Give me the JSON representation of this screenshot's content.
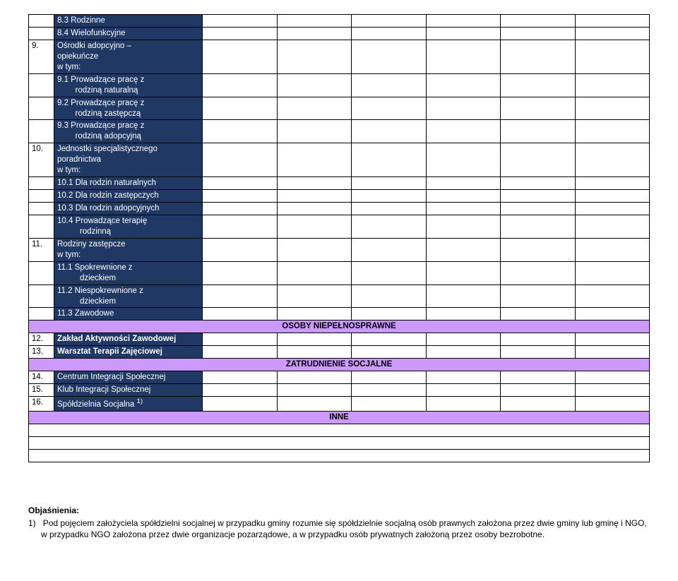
{
  "columns": {
    "num_width": 36,
    "desc_width": 210,
    "data_cols": 6
  },
  "colors": {
    "navy_bg": "#1f3864",
    "navy_text": "#ffffff",
    "purple_bg": "#cc99ff",
    "border": "#000000",
    "page_bg": "#ffffff"
  },
  "rows": [
    {
      "num": "",
      "desc": "8.3 Rodzinne",
      "navy": true,
      "indent": 1
    },
    {
      "num": "",
      "desc": "8.4 Wielofunkcyjne",
      "navy": true,
      "indent": 1
    },
    {
      "num": "9.",
      "desc": "Ośrodki adopcyjno –\nopiekuńcze\nw tym:",
      "navy": true,
      "indent": 0
    },
    {
      "num": "",
      "desc": "9.1 Prowadzące pracę z\n        rodziną naturalną",
      "navy": true,
      "indent": 1
    },
    {
      "num": "",
      "desc": "9.2 Prowadzące pracę z\n        rodziną zastępczą",
      "navy": true,
      "indent": 1
    },
    {
      "num": "",
      "desc": "9.3 Prowadzące pracę z\n        rodziną adopcyjną",
      "navy": true,
      "indent": 1
    },
    {
      "num": "10.",
      "desc": "Jednostki specjalistycznego\nporadnictwa\nw tym:",
      "navy": true,
      "indent": 0
    },
    {
      "num": "",
      "desc": "10.1 Dla rodzin naturalnych",
      "navy": true,
      "indent": 1
    },
    {
      "num": "",
      "desc": "10.2 Dla rodzin zastępczych",
      "navy": true,
      "indent": 1
    },
    {
      "num": "",
      "desc": "10.3 Dla rodzin adopcyjnych",
      "navy": true,
      "indent": 1
    },
    {
      "num": "",
      "desc": "10.4 Prowadzące terapię\n          rodzinną",
      "navy": true,
      "indent": 1
    },
    {
      "num": "11.",
      "desc": "Rodziny zastępcze\nw tym:",
      "navy": true,
      "indent": 0
    },
    {
      "num": "",
      "desc": "11.1 Spokrewnione z\n          dzieckiem",
      "navy": true,
      "indent": 1
    },
    {
      "num": "",
      "desc": "11.2 Niespokrewnione z\n          dzieckiem",
      "navy": true,
      "indent": 1
    },
    {
      "num": "",
      "desc": "11.3 Zawodowe",
      "navy": true,
      "indent": 1
    }
  ],
  "section1": {
    "label": "OSOBY NIEPEŁNOSPRAWNE"
  },
  "rows2": [
    {
      "num": "12.",
      "desc": "Zakład Aktywności Zawodowej",
      "navy": true,
      "bold": true
    },
    {
      "num": "13.",
      "desc": "Warsztat Terapii Zajęciowej",
      "navy": true,
      "bold": true
    }
  ],
  "section2": {
    "label": "ZATRUDNIENIE SOCJALNE"
  },
  "rows3": [
    {
      "num": "14.",
      "desc": "Centrum Integracji Społecznej",
      "navy": true
    },
    {
      "num": "15.",
      "desc": "Klub Integracji Społecznej",
      "navy": true
    },
    {
      "num": "16.",
      "desc": "Spółdzielnia Socjalna ",
      "sup": "1)",
      "navy": true
    }
  ],
  "section3": {
    "label": "INNE"
  },
  "empty_rows_after_inne": 3,
  "notes": {
    "heading": "Objaśnienia:",
    "item_num": "1)",
    "item_text": "Pod pojęciem założyciela spółdzielni socjalnej w przypadku gminy rozumie się spółdzielnie socjalną osób prawnych założona przez dwie gminy lub gminę i NGO, w przypadku NGO założona przez dwie organizacje pozarządowe, a w przypadku osób prywatnych założoną przez osoby bezrobotne."
  }
}
